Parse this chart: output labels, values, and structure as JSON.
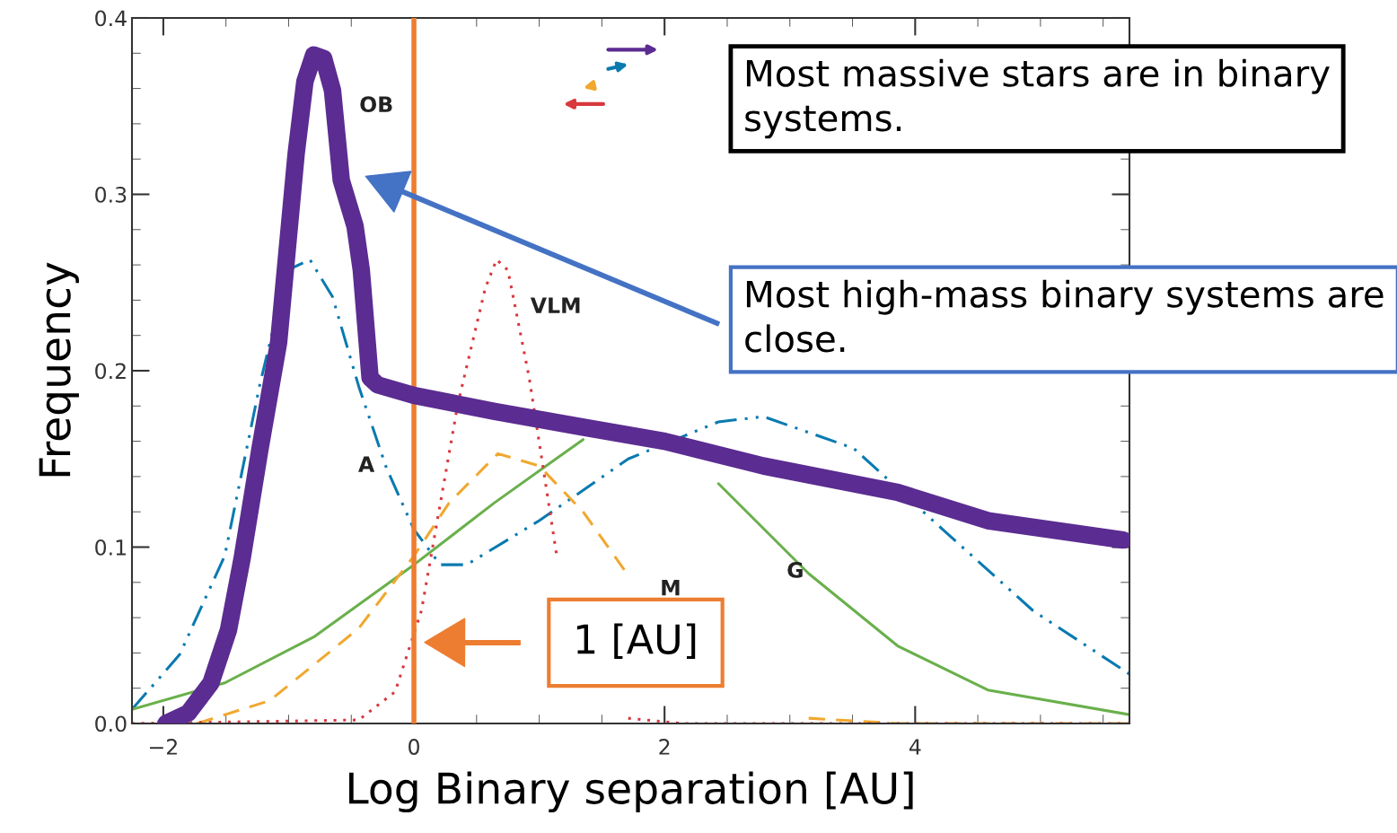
{
  "chart_data": {
    "type": "line",
    "xlabel": "Log Binary separation [AU]",
    "ylabel": "Frequency",
    "xlim": [
      -2.25,
      5.71
    ],
    "ylim": [
      0.0,
      0.4
    ],
    "xticks": [
      -2,
      0,
      2,
      4
    ],
    "yticks": [
      {
        "value": 0.0,
        "label": "0.0"
      },
      {
        "value": 0.1,
        "label": "0.1"
      },
      {
        "value": 0.2,
        "label": "0.2"
      },
      {
        "value": 0.3,
        "label": "0.3"
      },
      {
        "value": 0.4,
        "label": "0.4"
      }
    ],
    "grid": false,
    "legend": false,
    "series": [
      {
        "color": "#0a7ab0",
        "line_style": "dashdot",
        "x": [
          -2.25,
          -1.87,
          -1.51,
          -1.23,
          -1.01,
          -0.83,
          -0.65,
          -0.44,
          -0.22,
          0,
          0.21,
          0.42,
          1.0,
          1.71,
          2.43,
          2.79,
          3.51,
          4.22,
          4.94,
          5.71
        ],
        "values": [
          0.008,
          0.039,
          0.095,
          0.192,
          0.257,
          0.263,
          0.242,
          0.191,
          0.145,
          0.11,
          0.09,
          0.09,
          0.115,
          0.15,
          0.171,
          0.174,
          0.156,
          0.11,
          0.064,
          0.028
        ]
      },
      {
        "color": "#6ab04c",
        "line_style": "solid",
        "x": [
          -2.25,
          -1.51,
          -0.8,
          0,
          0.64,
          1.35,
          1.71,
          2.0,
          2.43,
          3.15,
          3.86,
          4.58,
          5.71
        ],
        "values": [
          0.008,
          0.023,
          0.049,
          0.09,
          0.125,
          0.161,
          null,
          null,
          0.136,
          0.085,
          0.044,
          0.019,
          0.005
        ]
      },
      {
        "color": "#f0a830",
        "line_style": "dashed",
        "x": [
          -1.73,
          -1.15,
          -0.44,
          0,
          0.28,
          0.67,
          1.0,
          1.35,
          1.71,
          2.07,
          2.43,
          3.15,
          3.86,
          5.71
        ],
        "values": [
          0.0,
          0.013,
          0.054,
          0.095,
          0.125,
          0.153,
          0.146,
          0.12,
          0.084,
          null,
          null,
          0.003,
          0.0,
          0.0
        ]
      },
      {
        "color": "#d8383e",
        "line_style": "dotted",
        "x": [
          -2.25,
          -0.44,
          -0.15,
          0.06,
          0.35,
          0.57,
          0.66,
          0.75,
          0.92,
          1.14,
          1.35,
          1.71,
          2.14,
          5.71
        ],
        "values": [
          0.0,
          0.002,
          0.018,
          0.064,
          0.181,
          0.247,
          0.263,
          0.257,
          0.196,
          0.095,
          null,
          0.003,
          0.0,
          0.0
        ]
      },
      {
        "color": "#5b2c91",
        "line_style": "solid",
        "x": [
          -1.98,
          -1.8,
          -1.62,
          -1.48,
          -1.37,
          -1.23,
          -1.08,
          -0.94,
          -0.87,
          -0.8,
          -0.72,
          -0.65,
          -0.58,
          -0.47,
          -0.42,
          -0.35,
          -0.29,
          0,
          0.64,
          1.35,
          2.0,
          2.79,
          3.86,
          4.58,
          5.66
        ],
        "values": [
          0.0,
          0.006,
          0.023,
          0.053,
          0.094,
          0.155,
          0.216,
          0.323,
          0.364,
          0.379,
          0.377,
          0.359,
          0.308,
          0.282,
          0.257,
          0.196,
          0.192,
          0.186,
          0.177,
          0.168,
          0.16,
          0.146,
          0.131,
          0.115,
          0.104
        ]
      }
    ],
    "ref_lines": [
      {
        "axis": "x",
        "value": 0,
        "color": "#ed7d31"
      }
    ],
    "annotations": [
      "OB",
      "VLM",
      "A",
      "M",
      "G",
      "Most massive stars are in binary systems.",
      "Most high-mass binary systems are close.",
      "1 [AU]"
    ]
  }
}
